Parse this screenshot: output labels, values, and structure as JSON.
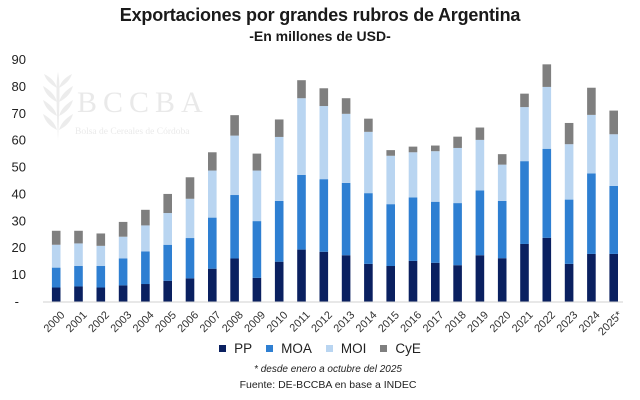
{
  "chart_data": {
    "type": "bar",
    "stacked": true,
    "title": "Exportaciones por grandes rubros de Argentina",
    "subtitle": "-En millones de USD-",
    "xlabel": "",
    "ylabel": "",
    "ylim": [
      0,
      90
    ],
    "yticks": [
      0,
      10,
      20,
      30,
      40,
      50,
      60,
      70,
      80,
      90
    ],
    "ytick_labels": [
      "-",
      "10",
      "20",
      "30",
      "40",
      "50",
      "60",
      "70",
      "80",
      "90"
    ],
    "grid": false,
    "legend_position": "bottom",
    "categories": [
      "2000",
      "2001",
      "2002",
      "2003",
      "2004",
      "2005",
      "2006",
      "2007",
      "2008",
      "2009",
      "2010",
      "2011",
      "2012",
      "2013",
      "2014",
      "2015",
      "2016",
      "2017",
      "2018",
      "2019",
      "2020",
      "2021",
      "2022",
      "2023",
      "2024",
      "2025*"
    ],
    "series": [
      {
        "name": "PP",
        "color": "#0a2060",
        "values": [
          5.2,
          5.6,
          5.2,
          6.0,
          6.5,
          7.7,
          8.6,
          12.2,
          16.0,
          8.8,
          14.8,
          19.3,
          18.5,
          17.2,
          14.0,
          13.2,
          15.1,
          14.4,
          13.5,
          17.2,
          16.1,
          21.4,
          23.7,
          14.0,
          17.7,
          17.7
        ]
      },
      {
        "name": "MOA",
        "color": "#2e7fd2",
        "values": [
          7.4,
          7.6,
          8.0,
          10.0,
          12.1,
          13.4,
          15.0,
          19.0,
          23.6,
          21.1,
          22.6,
          27.8,
          27.0,
          26.9,
          26.3,
          23.0,
          23.6,
          22.7,
          23.1,
          24.1,
          21.3,
          30.8,
          33.1,
          23.9,
          29.9,
          25.3
        ]
      },
      {
        "name": "MOI",
        "color": "#b9d5f1",
        "values": [
          8.5,
          8.4,
          7.5,
          8.1,
          9.7,
          11.8,
          14.6,
          17.5,
          22.1,
          18.8,
          23.8,
          28.5,
          27.2,
          25.7,
          22.8,
          18.0,
          16.8,
          18.8,
          20.5,
          18.8,
          13.5,
          20.1,
          23.0,
          20.6,
          21.8,
          19.2
        ]
      },
      {
        "name": "CyE",
        "color": "#7f7f7f",
        "values": [
          5.2,
          4.7,
          4.6,
          5.5,
          5.8,
          7.1,
          8.0,
          6.8,
          7.6,
          6.3,
          6.5,
          6.7,
          6.6,
          5.8,
          4.9,
          2.1,
          2.1,
          2.1,
          4.2,
          4.6,
          3.9,
          5.0,
          8.4,
          7.9,
          10.1,
          8.8
        ]
      }
    ],
    "annotations": [
      "* desde enero a octubre del 2025",
      "Fuente: DE-BCCBA en base a INDEC"
    ]
  },
  "watermark": {
    "name": "BCCBA",
    "tagline": "Bolsa de Cereales de Córdoba"
  },
  "legend": [
    {
      "label": "PP",
      "color": "#0a2060"
    },
    {
      "label": "MOA",
      "color": "#2e7fd2"
    },
    {
      "label": "MOI",
      "color": "#b9d5f1"
    },
    {
      "label": "CyE",
      "color": "#7f7f7f"
    }
  ],
  "footnote": "* desde enero a octubre del 2025",
  "source": "Fuente: DE-BCCBA en base a INDEC"
}
